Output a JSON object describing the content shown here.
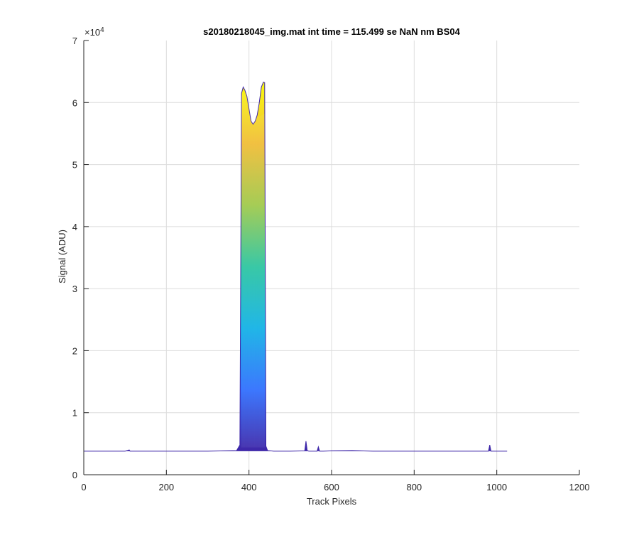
{
  "chart_data": {
    "type": "line",
    "title": "s20180218045_img.mat int time = 115.499 se  NaN nm BS04",
    "xlabel": "Track Pixels",
    "ylabel": "Signal (ADU)",
    "xlim": [
      0,
      1200
    ],
    "ylim": [
      0,
      70000
    ],
    "x_ticks": [
      0,
      200,
      400,
      600,
      800,
      1000,
      1200
    ],
    "x_tick_labels": [
      "0",
      "200",
      "400",
      "600",
      "800",
      "1000",
      "1200"
    ],
    "y_ticks": [
      0,
      10000,
      20000,
      30000,
      40000,
      50000,
      60000,
      70000
    ],
    "y_tick_labels": [
      "0",
      "1",
      "2",
      "3",
      "4",
      "5",
      "6",
      "7"
    ],
    "y_exponent_label": "×10",
    "y_exponent_power": "4",
    "grid": true,
    "colormap": [
      "#3e26a8",
      "#2f6ffe",
      "#12b2e6",
      "#2cc5a0",
      "#a0c94b",
      "#f1bd35",
      "#f9fb0e"
    ],
    "baseline": 3800,
    "series": [
      {
        "x": [
          0,
          100,
          110,
          112,
          200,
          300,
          370,
          378,
          382,
          386,
          390,
          395,
          400,
          405,
          410,
          415,
          420,
          425,
          430,
          435,
          438,
          441,
          445,
          460,
          500,
          535,
          538,
          541,
          545,
          565,
          568,
          571,
          580,
          600,
          650,
          700,
          800,
          900,
          980,
          983,
          986,
          990,
          1025
        ],
        "y": [
          3800,
          3800,
          4000,
          3800,
          3800,
          3800,
          3900,
          4800,
          61500,
          62500,
          62000,
          61000,
          59000,
          57000,
          56500,
          57000,
          58000,
          60000,
          62500,
          63300,
          63200,
          4600,
          3900,
          3800,
          3800,
          3850,
          5400,
          3900,
          3800,
          3800,
          4500,
          3800,
          3800,
          3850,
          3900,
          3800,
          3800,
          3800,
          3800,
          4800,
          3800,
          3800,
          3800
        ]
      }
    ]
  }
}
